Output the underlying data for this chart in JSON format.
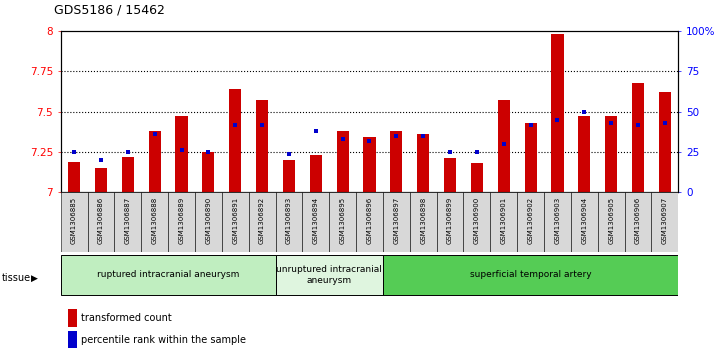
{
  "title": "GDS5186 / 15462",
  "samples": [
    "GSM1306885",
    "GSM1306886",
    "GSM1306887",
    "GSM1306888",
    "GSM1306889",
    "GSM1306890",
    "GSM1306891",
    "GSM1306892",
    "GSM1306893",
    "GSM1306894",
    "GSM1306895",
    "GSM1306896",
    "GSM1306897",
    "GSM1306898",
    "GSM1306899",
    "GSM1306900",
    "GSM1306901",
    "GSM1306902",
    "GSM1306903",
    "GSM1306904",
    "GSM1306905",
    "GSM1306906",
    "GSM1306907"
  ],
  "red_values": [
    7.19,
    7.15,
    7.22,
    7.38,
    7.47,
    7.25,
    7.64,
    7.57,
    7.2,
    7.23,
    7.38,
    7.34,
    7.38,
    7.36,
    7.21,
    7.18,
    7.57,
    7.43,
    7.98,
    7.47,
    7.47,
    7.68,
    7.62
  ],
  "blue_values": [
    7.25,
    7.2,
    7.25,
    7.36,
    7.26,
    7.25,
    7.42,
    7.42,
    7.24,
    7.38,
    7.33,
    7.32,
    7.35,
    7.35,
    7.25,
    7.25,
    7.3,
    7.42,
    7.45,
    7.5,
    7.43,
    7.42,
    7.43
  ],
  "groups": [
    {
      "label": "ruptured intracranial aneurysm",
      "start": 0,
      "end": 8,
      "color": "#c0eec0"
    },
    {
      "label": "unruptured intracranial\naneurysm",
      "start": 8,
      "end": 12,
      "color": "#dff5df"
    },
    {
      "label": "superficial temporal artery",
      "start": 12,
      "end": 23,
      "color": "#55cc55"
    }
  ],
  "ylim_left": [
    7.0,
    8.0
  ],
  "yticks_left": [
    7.0,
    7.25,
    7.5,
    7.75,
    8.0
  ],
  "ytick_labels_left": [
    "7",
    "7.25",
    "7.5",
    "7.75",
    "8"
  ],
  "yticks_right": [
    0,
    25,
    50,
    75,
    100
  ],
  "ytick_labels_right": [
    "0",
    "25",
    "50",
    "75",
    "100%"
  ],
  "hlines": [
    7.25,
    7.5,
    7.75
  ],
  "bar_color": "#cc0000",
  "dot_color": "#0000cc",
  "plot_bg": "#ffffff",
  "tick_bg": "#d8d8d8",
  "bar_width": 0.45,
  "legend_red": "transformed count",
  "legend_blue": "percentile rank within the sample",
  "tissue_label": "tissue"
}
